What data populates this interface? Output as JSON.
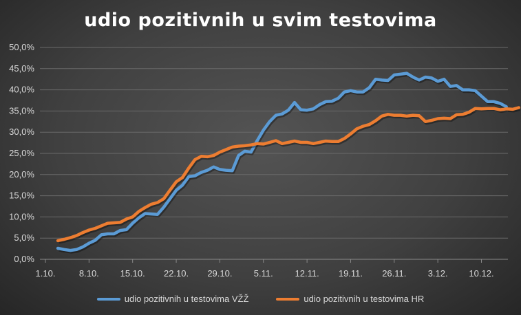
{
  "chart_data": {
    "type": "line",
    "title": "udio pozitivnih u svim testovima",
    "xlabel": "",
    "ylabel": "",
    "ylim": [
      0,
      50
    ],
    "y_ticks": [
      "0,0%",
      "5,0%",
      "10,0%",
      "15,0%",
      "20,0%",
      "25,0%",
      "30,0%",
      "35,0%",
      "40,0%",
      "45,0%",
      "50,0%"
    ],
    "x_ticks": [
      "1.10.",
      "8.10.",
      "15.10.",
      "22.10.",
      "29.10.",
      "5.11.",
      "12.11.",
      "19.11.",
      "26.11.",
      "3.12.",
      "10.12."
    ],
    "x_unit": "day index from 1.10. (1 = 1.10.)",
    "x_start_day": 3,
    "grid": true,
    "legend_position": "bottom",
    "series": [
      {
        "name": "udio pozitivnih u testovima VŽŽ",
        "color": "#5b9bd5",
        "values": [
          2.6,
          2.3,
          2.1,
          2.3,
          2.9,
          3.8,
          4.5,
          5.8,
          6.0,
          6.0,
          6.8,
          7.0,
          8.5,
          9.8,
          10.8,
          10.7,
          10.6,
          12.3,
          14.3,
          16.3,
          17.5,
          19.5,
          19.7,
          20.5,
          21.0,
          21.8,
          21.2,
          21.0,
          20.9,
          24.5,
          25.5,
          25.3,
          28.0,
          30.5,
          32.5,
          34.0,
          34.3,
          35.2,
          37.0,
          35.3,
          35.2,
          35.5,
          36.5,
          37.2,
          37.3,
          38.0,
          39.5,
          39.8,
          39.5,
          39.5,
          40.5,
          42.5,
          42.3,
          42.2,
          43.5,
          43.7,
          43.9,
          43.0,
          42.3,
          43.0,
          42.8,
          42.0,
          42.5,
          40.8,
          41.0,
          40.0,
          40.0,
          39.8,
          38.5,
          37.2,
          37.2,
          36.8,
          36.0
        ]
      },
      {
        "name": "udio pozitivnih u testovima HR",
        "color": "#ed7d31",
        "values": [
          4.4,
          4.7,
          5.1,
          5.6,
          6.3,
          6.9,
          7.3,
          7.9,
          8.5,
          8.6,
          8.7,
          9.5,
          10.0,
          11.3,
          12.2,
          13.0,
          13.4,
          14.3,
          16.3,
          18.3,
          19.3,
          21.5,
          23.5,
          24.3,
          24.2,
          24.5,
          25.3,
          25.9,
          26.5,
          26.7,
          26.8,
          27.0,
          27.3,
          27.2,
          27.6,
          28.0,
          27.3,
          27.6,
          27.9,
          27.6,
          27.6,
          27.3,
          27.6,
          27.9,
          27.8,
          27.8,
          28.5,
          29.6,
          30.8,
          31.4,
          31.8,
          32.7,
          33.8,
          34.2,
          34.0,
          34.0,
          33.8,
          34.0,
          33.9,
          32.5,
          32.8,
          33.2,
          33.3,
          33.2,
          34.1,
          34.2,
          34.7,
          35.6,
          35.5,
          35.6,
          35.6,
          35.3,
          35.5,
          35.4,
          35.8
        ]
      }
    ]
  }
}
